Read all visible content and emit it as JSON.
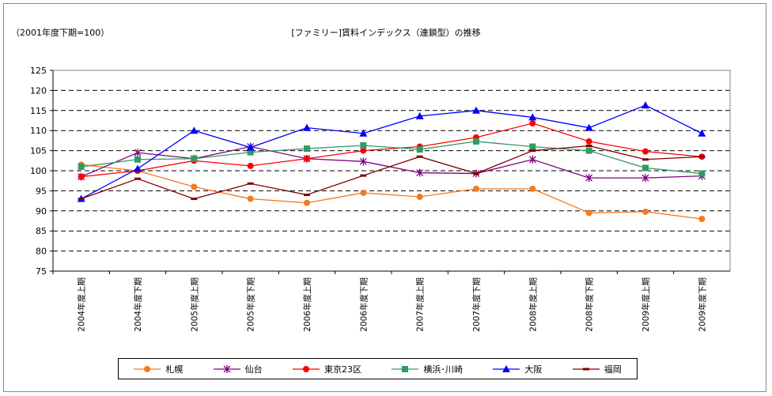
{
  "chart_data": {
    "type": "line",
    "title": "[ファミリー]賃料インデックス（連鎖型）の推移",
    "unit_note": "（2001年度下期=100）",
    "ylim": [
      75,
      125
    ],
    "yticks": [
      "75",
      "80",
      "85",
      "90",
      "95",
      "100",
      "105",
      "110",
      "115",
      "120",
      "125"
    ],
    "grid": true,
    "legend": "bottom",
    "categories": [
      "2004年度上期",
      "2004年度下期",
      "2005年度上期",
      "2005年度下期",
      "2006年度上期",
      "2006年度下期",
      "2007年度上期",
      "2007年度下期",
      "2008年度上期",
      "2008年度下期",
      "2009年度上期",
      "2009年度下期"
    ],
    "series": [
      {
        "name": "札幌",
        "color": "#f47920",
        "marker": "circle",
        "values": [
          101.5,
          100,
          96,
          93,
          92,
          94.5,
          93.5,
          95.5,
          95.5,
          89.5,
          89.8,
          88
        ]
      },
      {
        "name": "仙台",
        "color": "#800080",
        "marker": "star",
        "values": [
          98.5,
          104.5,
          103,
          106,
          103,
          102.3,
          99.5,
          99.3,
          102.8,
          98.2,
          98.2,
          98.7
        ]
      },
      {
        "name": "東京23区",
        "color": "#ff0000",
        "marker": "circle",
        "values": [
          98.5,
          100,
          102.5,
          101.2,
          103,
          105,
          106,
          108.3,
          111.8,
          107.3,
          104.8,
          103.5
        ]
      },
      {
        "name": "横浜･川崎",
        "color": "#339966",
        "marker": "square",
        "values": [
          101,
          102.8,
          103,
          104.6,
          105.5,
          106.3,
          105.3,
          107.3,
          106,
          105,
          100.7,
          99.3
        ]
      },
      {
        "name": "大阪",
        "color": "#0000ff",
        "marker": "triangle",
        "values": [
          93,
          100.5,
          110,
          105.8,
          110.7,
          109.3,
          113.6,
          115,
          113.3,
          110.7,
          116.3,
          109.3
        ]
      },
      {
        "name": "福岡",
        "color": "#800000",
        "marker": "dash",
        "values": [
          93,
          98,
          93,
          96.8,
          94,
          98.8,
          103.5,
          99.3,
          105,
          106.2,
          102.8,
          103.5
        ]
      }
    ]
  }
}
